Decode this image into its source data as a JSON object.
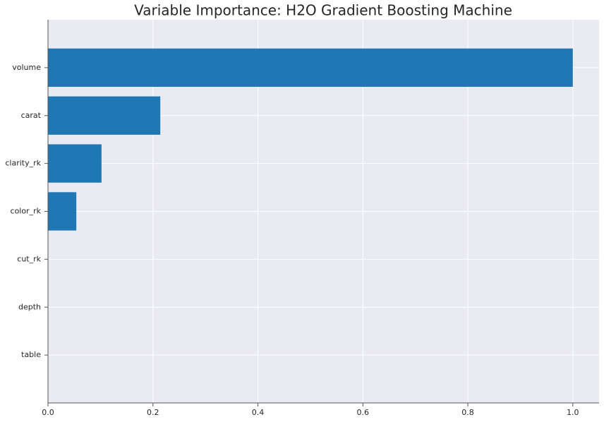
{
  "chart_data": {
    "type": "barh",
    "title": "Variable Importance: H2O Gradient Boosting Machine",
    "categories": [
      "volume",
      "carat",
      "clarity_rk",
      "color_rk",
      "cut_rk",
      "depth",
      "table"
    ],
    "values": [
      1.0,
      0.214,
      0.102,
      0.054,
      0.0,
      0.0,
      0.0
    ],
    "color": "#1f77b4",
    "xlim": [
      0,
      1.05
    ],
    "xticks": [
      {
        "value": 0,
        "label": "0.0"
      },
      0.2,
      0.4,
      0.6,
      0.8,
      {
        "value": 1,
        "label": "1.0"
      }
    ],
    "grid": true
  }
}
